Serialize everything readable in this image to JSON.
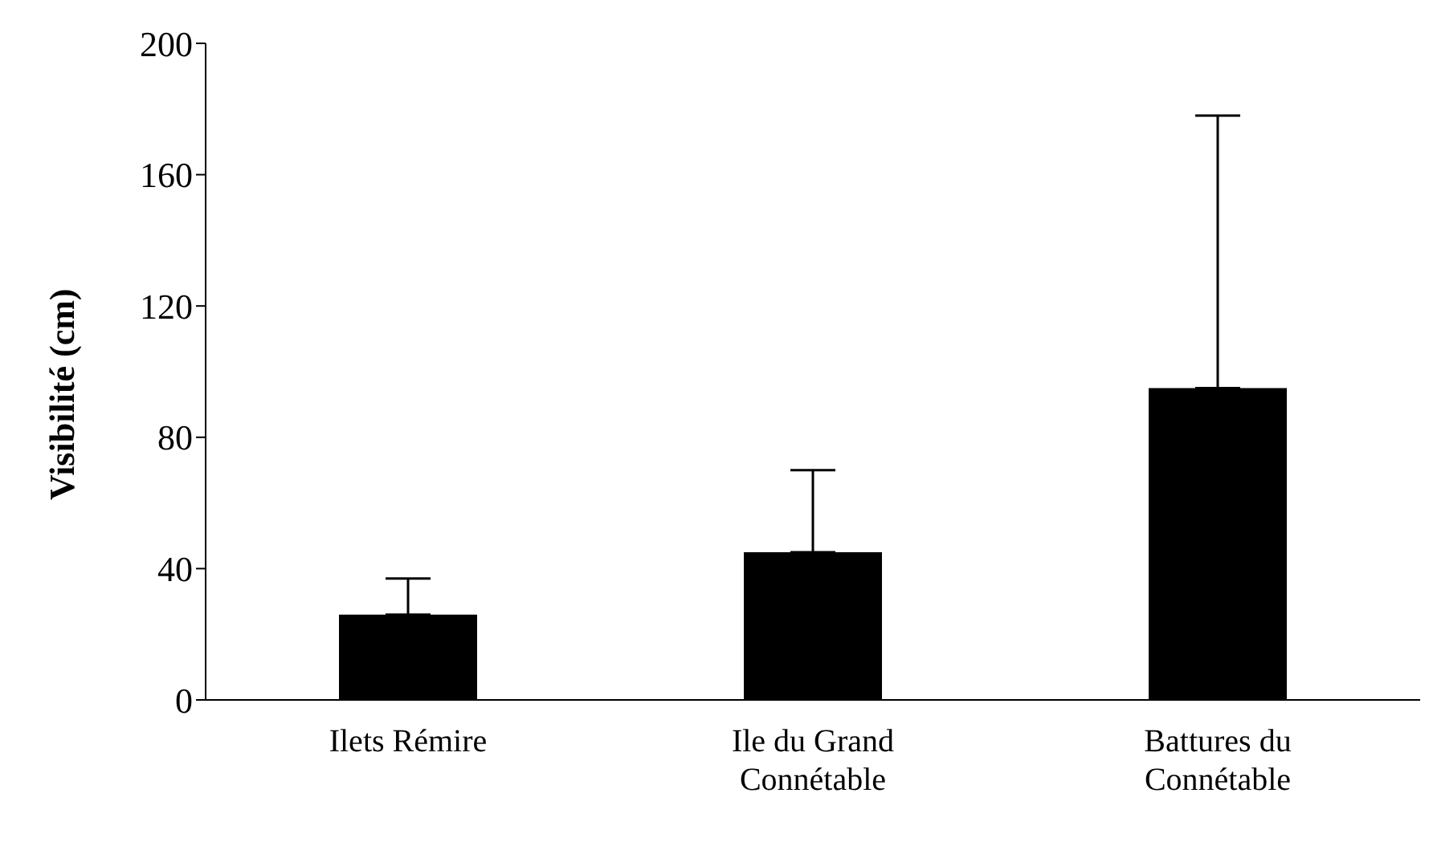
{
  "chart_data": {
    "type": "bar",
    "ylabel": "Visibilité (cm)",
    "categories": [
      "Ilets Rémire",
      "Ile du Grand Connétable",
      "Battures du Connétable"
    ],
    "values": [
      26,
      45,
      95
    ],
    "errors": [
      [
        26,
        37
      ],
      [
        45,
        70
      ],
      [
        95,
        178
      ]
    ],
    "color": "#000000",
    "ylim": [
      0,
      200
    ],
    "yticks": [
      0,
      40,
      80,
      120,
      160,
      200
    ],
    "grid": false,
    "legend": false
  }
}
